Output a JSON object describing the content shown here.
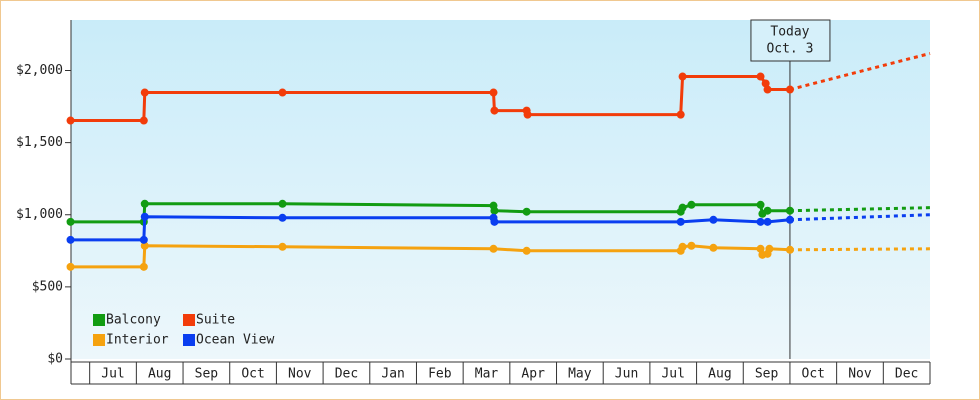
{
  "chart_data": {
    "type": "line",
    "ylim": [
      0,
      2350
    ],
    "yticks": [
      {
        "value": 0,
        "label": "$0"
      },
      {
        "value": 500,
        "label": "$500"
      },
      {
        "value": 1000,
        "label": "$1,000"
      },
      {
        "value": 1500,
        "label": "$1,500"
      },
      {
        "value": 2000,
        "label": "$2,000"
      }
    ],
    "xlim": [
      -0.4,
      18
    ],
    "xticks": [
      {
        "value": 0.5,
        "label": "Jul"
      },
      {
        "value": 1.5,
        "label": "Aug"
      },
      {
        "value": 2.5,
        "label": "Sep"
      },
      {
        "value": 3.5,
        "label": "Oct"
      },
      {
        "value": 4.5,
        "label": "Nov"
      },
      {
        "value": 5.5,
        "label": "Dec"
      },
      {
        "value": 6.5,
        "label": "Jan"
      },
      {
        "value": 7.5,
        "label": "Feb"
      },
      {
        "value": 8.5,
        "label": "Mar"
      },
      {
        "value": 9.5,
        "label": "Apr"
      },
      {
        "value": 10.5,
        "label": "May"
      },
      {
        "value": 11.5,
        "label": "Jun"
      },
      {
        "value": 12.5,
        "label": "Jul"
      },
      {
        "value": 13.5,
        "label": "Aug"
      },
      {
        "value": 14.5,
        "label": "Sep"
      },
      {
        "value": 15.5,
        "label": "Oct"
      },
      {
        "value": 16.5,
        "label": "Nov"
      },
      {
        "value": 17.5,
        "label": "Dec"
      }
    ],
    "legend": "lower left",
    "annotation": {
      "lines": [
        "Today",
        "Oct. 3"
      ],
      "x": 15.0
    },
    "series": [
      {
        "name": "Balcony",
        "color": "#129c12",
        "x": [
          -0.41,
          1.16,
          1.18,
          4.13,
          8.65,
          8.67,
          9.36,
          12.66,
          12.7,
          12.89,
          14.37,
          14.41,
          14.52,
          15.0,
          18.0
        ],
        "values": [
          951,
          951,
          1076,
          1076,
          1063,
          1028,
          1021,
          1021,
          1049,
          1069,
          1069,
          1007,
          1028,
          1028,
          1049
        ]
      },
      {
        "name": "Suite",
        "color": "#f23c0a",
        "x": [
          -0.41,
          1.16,
          1.18,
          4.13,
          8.65,
          8.67,
          9.36,
          9.38,
          12.66,
          12.7,
          14.37,
          14.48,
          14.52,
          15.0,
          18.0
        ],
        "values": [
          1653,
          1653,
          1847,
          1847,
          1847,
          1722,
          1722,
          1694,
          1694,
          1958,
          1958,
          1910,
          1868,
          1868,
          2118
        ]
      },
      {
        "name": "Interior",
        "color": "#f5a20f",
        "x": [
          -0.41,
          1.16,
          1.18,
          4.13,
          8.65,
          9.36,
          12.66,
          12.7,
          12.89,
          13.36,
          14.37,
          14.41,
          14.52,
          14.56,
          15.0,
          18.0
        ],
        "values": [
          639,
          639,
          785,
          778,
          764,
          750,
          750,
          778,
          785,
          771,
          764,
          722,
          729,
          764,
          757,
          764
        ]
      },
      {
        "name": "Ocean View",
        "color": "#0a3ef0",
        "x": [
          -0.41,
          1.16,
          1.18,
          4.13,
          8.65,
          8.67,
          12.66,
          13.36,
          14.37,
          14.52,
          15.0,
          18.0
        ],
        "values": [
          826,
          826,
          986,
          979,
          979,
          951,
          951,
          965,
          951,
          951,
          965,
          1000
        ]
      }
    ]
  }
}
